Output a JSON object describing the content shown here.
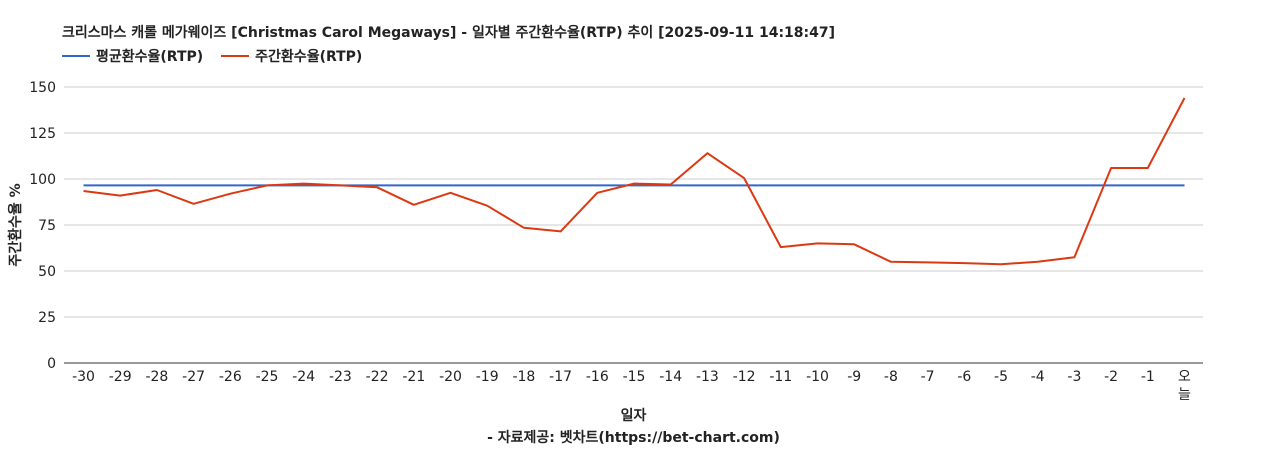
{
  "chart_data": {
    "type": "line",
    "title": "크리스마스 캐롤 메가웨이즈 [Christmas Carol Megaways] - 일자별 주간환수율(RTP) 추이 [2025-09-11 14:18:47]",
    "xlabel": "일자",
    "ylabel": "주간환수율 %",
    "source": "- 자료제공: 벳차트(https://bet-chart.com)",
    "categories": [
      "-30",
      "-29",
      "-28",
      "-27",
      "-26",
      "-25",
      "-24",
      "-23",
      "-22",
      "-21",
      "-20",
      "-19",
      "-18",
      "-17",
      "-16",
      "-15",
      "-14",
      "-13",
      "-12",
      "-11",
      "-10",
      "-9",
      "-8",
      "-7",
      "-6",
      "-5",
      "-4",
      "-3",
      "-2",
      "-1",
      "오늘"
    ],
    "ylim": [
      0,
      150
    ],
    "yticks": [
      0,
      25,
      50,
      75,
      100,
      125,
      150
    ],
    "grid": true,
    "legend_position": "top-left",
    "series": [
      {
        "name": "평균환수율(RTP)",
        "color": "#3366cc",
        "values": [
          96.5,
          96.5,
          96.5,
          96.5,
          96.5,
          96.5,
          96.5,
          96.5,
          96.5,
          96.5,
          96.5,
          96.5,
          96.5,
          96.5,
          96.5,
          96.5,
          96.5,
          96.5,
          96.5,
          96.5,
          96.5,
          96.5,
          96.5,
          96.5,
          96.5,
          96.5,
          96.5,
          96.5,
          96.5,
          96.5,
          96.5
        ]
      },
      {
        "name": "주간환수율(RTP)",
        "color": "#dc3912",
        "values": [
          93.5,
          91,
          94,
          86.5,
          92,
          96.5,
          97.5,
          96.5,
          95.5,
          86,
          92.5,
          85.5,
          73.5,
          71.5,
          92.5,
          97.5,
          97,
          114,
          100.5,
          63,
          65,
          64.5,
          55,
          54.7,
          54.3,
          53.7,
          55,
          57.5,
          106,
          106,
          144
        ]
      }
    ]
  }
}
